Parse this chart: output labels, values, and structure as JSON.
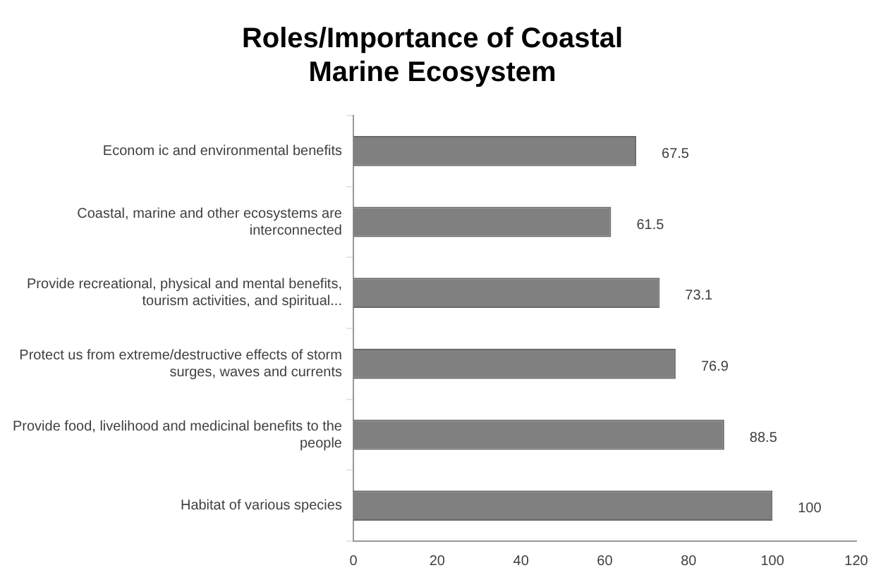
{
  "chart_data": {
    "type": "bar",
    "orientation": "horizontal",
    "title": "Roles/Importance of Coastal Marine Ecosystem",
    "categories": [
      "Econom ic and environmental benefits",
      "Coastal, marine and other ecosystems are interconnected",
      "Provide recreational, physical and mental benefits, tourism activities, and spiritual...",
      "Protect us from extreme/destructive effects of storm surges, waves and currents",
      "Provide food, livelihood and medicinal benefits to the people",
      "Habitat of various species"
    ],
    "values": [
      67.5,
      61.5,
      73.1,
      76.9,
      88.5,
      100
    ],
    "color": "#808080",
    "xlim": [
      0,
      120
    ],
    "xticks": [
      0,
      20,
      40,
      60,
      80,
      100,
      120
    ],
    "data_labels": true,
    "grid": false,
    "legend": false
  }
}
